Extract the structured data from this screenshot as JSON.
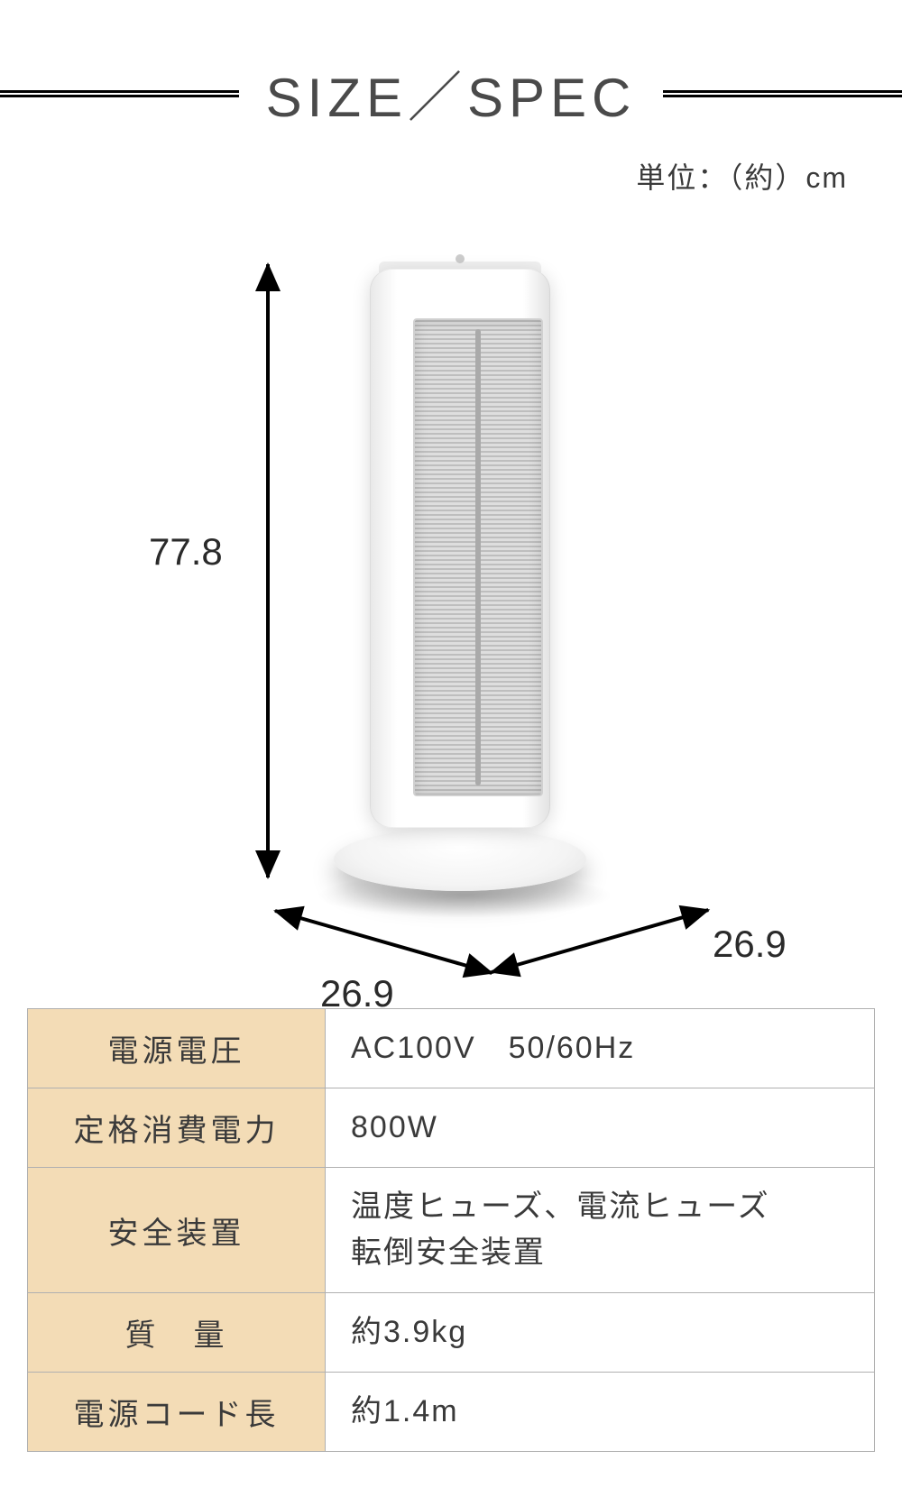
{
  "header": {
    "title": "SIZE／SPEC",
    "title_color": "#4a4a4a",
    "title_fontsize": 60,
    "line_color": "#000000"
  },
  "unit_label": "単位：（約）cm",
  "dimensions": {
    "height": "77.8",
    "width": "26.9",
    "depth": "26.9"
  },
  "diagram": {
    "arrow_color": "#000000",
    "label_fontsize": 42,
    "label_color": "#2a2a2a",
    "heater_body_color": "#ffffff",
    "heater_grill_color": "#bebebe"
  },
  "spec_table": {
    "label_bg": "#f3dcb6",
    "value_bg": "#ffffff",
    "border_color": "#b0b0b0",
    "fontsize": 34,
    "rows": [
      {
        "label": "電源電圧",
        "value": "AC100V　50/60Hz"
      },
      {
        "label": "定格消費電力",
        "value": "800W"
      },
      {
        "label": "安全装置",
        "value": "温度ヒューズ、電流ヒューズ\n転倒安全装置"
      },
      {
        "label": "質　量",
        "value": "約3.9kg"
      },
      {
        "label": "電源コード長",
        "value": "約1.4m"
      }
    ]
  }
}
